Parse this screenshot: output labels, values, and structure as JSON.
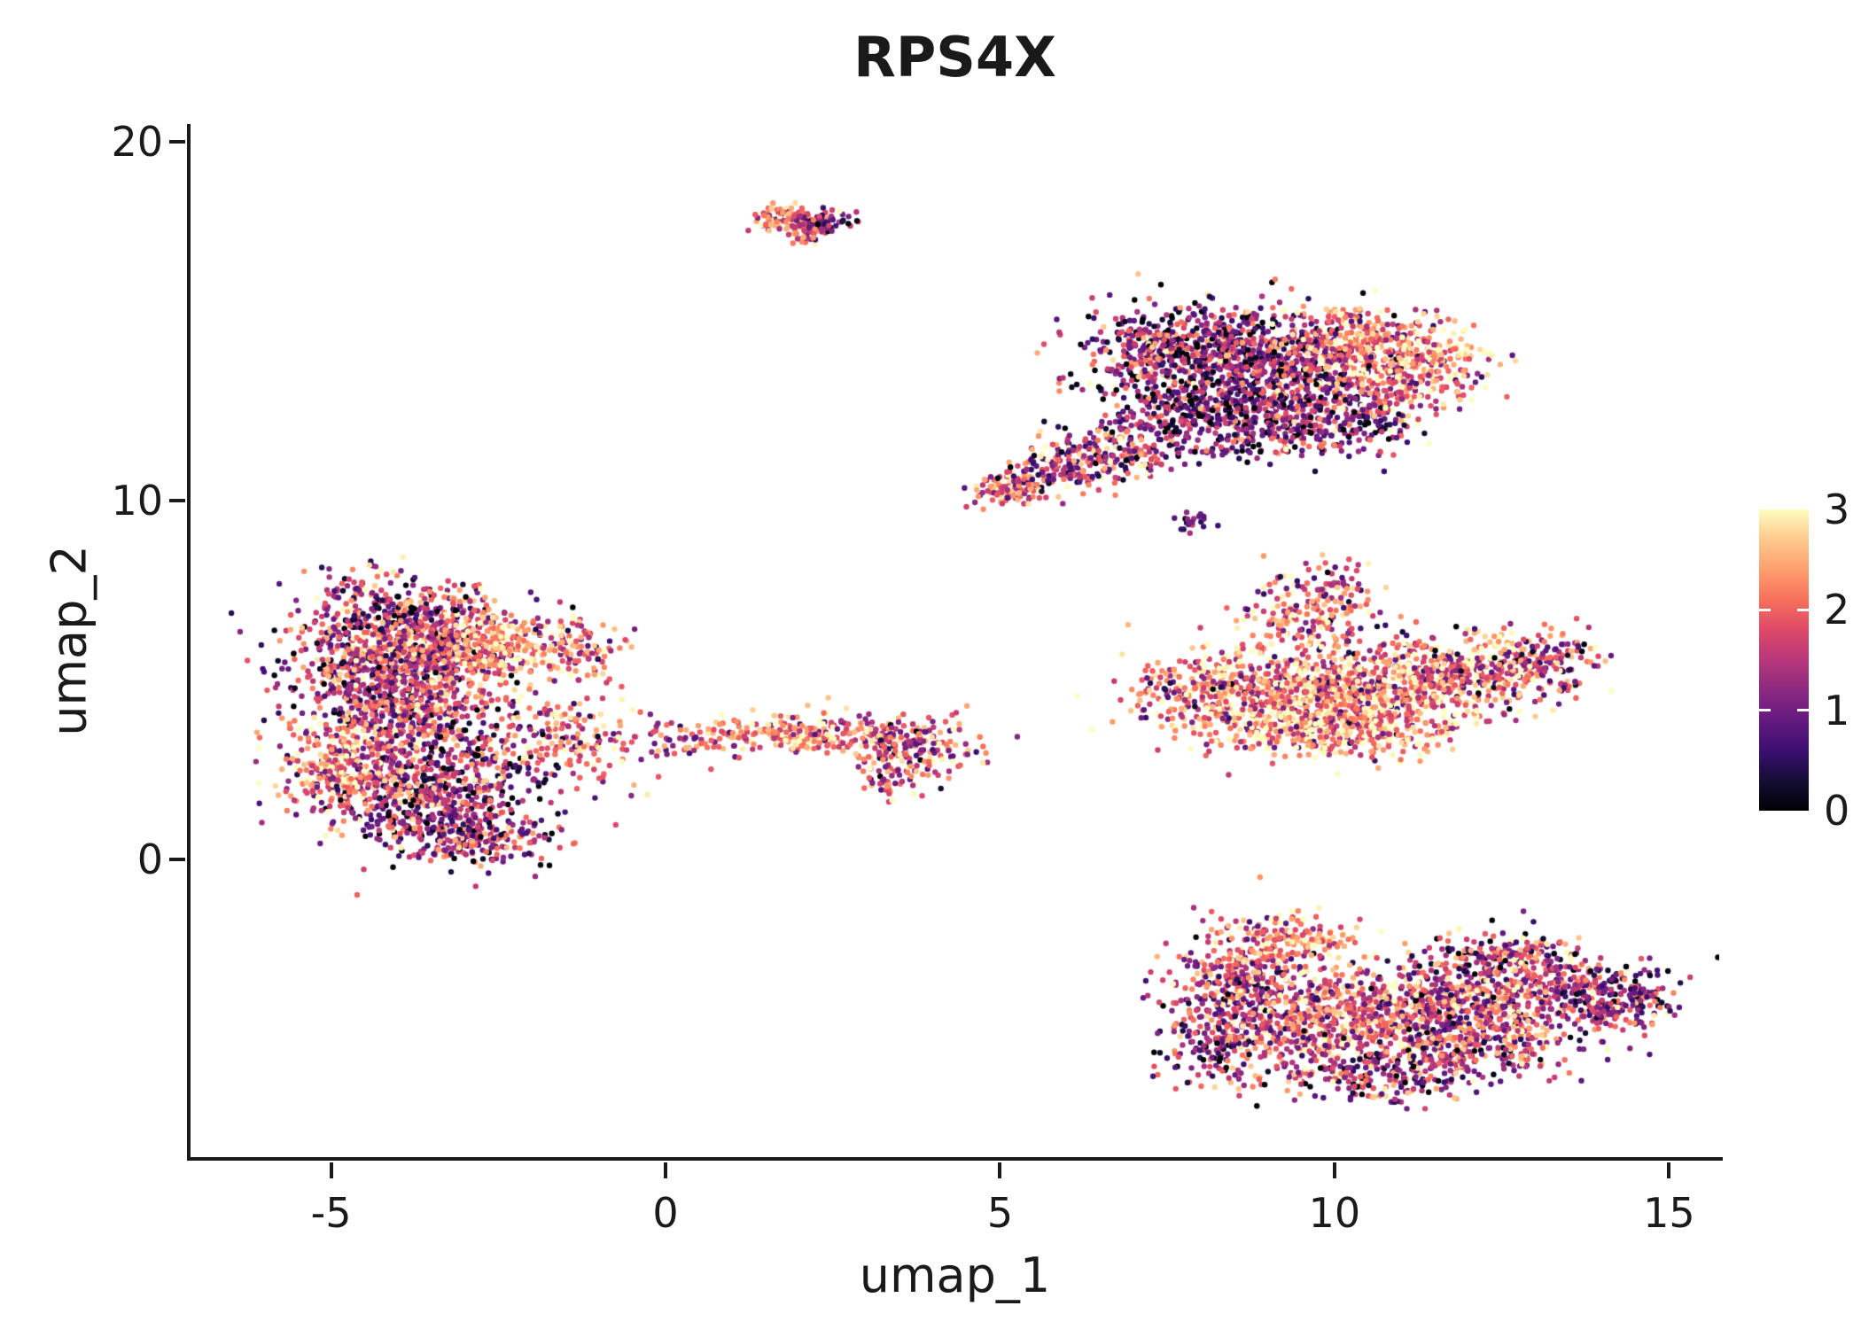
{
  "style": {
    "background": "#ffffff",
    "axis_color": "#1a1a1a",
    "text_color": "#1a1a1a"
  },
  "chart_data": {
    "type": "scatter",
    "title": "RPS4X",
    "xlabel": "umap_1",
    "ylabel": "umap_2",
    "xlim": [
      -7.1,
      15.75
    ],
    "ylim": [
      -8.3,
      20.5
    ],
    "xticks": [
      -5,
      0,
      5,
      10,
      15
    ],
    "yticks": [
      0,
      10,
      20
    ],
    "grid": false,
    "point_radius_px": 3.2,
    "seed": 1337,
    "legend": {
      "type": "colorbar",
      "position": "right",
      "domain": [
        0,
        3
      ],
      "label_values": [
        0,
        1,
        2,
        3
      ],
      "tick_marks": [
        1,
        2
      ],
      "colormap": "magma",
      "gradient_stops": [
        {
          "t": 0.0,
          "color": "#000004"
        },
        {
          "t": 0.1,
          "color": "#140e36"
        },
        {
          "t": 0.2,
          "color": "#3b0f70"
        },
        {
          "t": 0.3,
          "color": "#641a80"
        },
        {
          "t": 0.4,
          "color": "#8c2981"
        },
        {
          "t": 0.5,
          "color": "#b73779"
        },
        {
          "t": 0.6,
          "color": "#de4968"
        },
        {
          "t": 0.7,
          "color": "#f7705c"
        },
        {
          "t": 0.8,
          "color": "#fe9f6d"
        },
        {
          "t": 0.9,
          "color": "#fec98d"
        },
        {
          "t": 1.0,
          "color": "#fcfdbf"
        }
      ]
    },
    "clusters": [
      {
        "name": "top-island-a",
        "n": 90,
        "cx": 1.75,
        "cy": 17.9,
        "sx": 0.22,
        "sy": 0.16,
        "value_mean": 2.1,
        "value_sd": 0.7
      },
      {
        "name": "top-island-b",
        "n": 85,
        "cx": 2.3,
        "cy": 17.75,
        "sx": 0.25,
        "sy": 0.13,
        "value_mean": 1.2,
        "value_sd": 0.7
      },
      {
        "name": "top-island-c",
        "n": 25,
        "cx": 2.0,
        "cy": 17.45,
        "sx": 0.12,
        "sy": 0.2,
        "value_mean": 1.9,
        "value_sd": 0.7
      },
      {
        "name": "upper-right-a",
        "n": 500,
        "cx": 7.6,
        "cy": 14.2,
        "sx": 0.8,
        "sy": 0.65,
        "value_mean": 1.1,
        "value_sd": 0.85
      },
      {
        "name": "upper-right-b",
        "n": 550,
        "cx": 9.2,
        "cy": 13.8,
        "sx": 0.9,
        "sy": 0.75,
        "value_mean": 1.3,
        "value_sd": 0.85
      },
      {
        "name": "upper-right-c",
        "n": 420,
        "cx": 8.3,
        "cy": 12.4,
        "sx": 0.9,
        "sy": 0.6,
        "value_mean": 1.0,
        "value_sd": 0.8
      },
      {
        "name": "upper-right-d",
        "n": 260,
        "cx": 10.3,
        "cy": 14.4,
        "sx": 0.6,
        "sy": 0.5,
        "value_mean": 2.2,
        "value_sd": 0.75
      },
      {
        "name": "upper-right-e",
        "n": 200,
        "cx": 10.8,
        "cy": 13.2,
        "sx": 0.5,
        "sy": 0.6,
        "value_mean": 1.9,
        "value_sd": 0.8
      },
      {
        "name": "upper-right-f",
        "n": 220,
        "cx": 9.9,
        "cy": 12.2,
        "sx": 0.7,
        "sy": 0.5,
        "value_mean": 1.2,
        "value_sd": 0.8
      },
      {
        "name": "upper-right-g",
        "n": 130,
        "cx": 11.5,
        "cy": 13.9,
        "sx": 0.45,
        "sy": 0.55,
        "value_mean": 2.4,
        "value_sd": 0.6
      },
      {
        "name": "upper-right-tail-a",
        "n": 110,
        "cx": 5.15,
        "cy": 10.35,
        "sx": 0.3,
        "sy": 0.22,
        "value_mean": 1.9,
        "value_sd": 0.7
      },
      {
        "name": "upper-right-tail-b",
        "n": 130,
        "cx": 6.0,
        "cy": 10.9,
        "sx": 0.45,
        "sy": 0.3,
        "value_mean": 1.6,
        "value_sd": 0.8
      },
      {
        "name": "upper-right-tail-c",
        "n": 150,
        "cx": 6.9,
        "cy": 11.5,
        "sx": 0.5,
        "sy": 0.4,
        "value_mean": 1.4,
        "value_sd": 0.8
      },
      {
        "name": "mini-island",
        "n": 20,
        "cx": 7.95,
        "cy": 9.4,
        "sx": 0.13,
        "sy": 0.16,
        "value_mean": 0.9,
        "value_sd": 0.6
      },
      {
        "name": "mid-right-a",
        "n": 600,
        "cx": 9.3,
        "cy": 4.6,
        "sx": 1.0,
        "sy": 0.6,
        "value_mean": 2.3,
        "value_sd": 0.75
      },
      {
        "name": "mid-right-b",
        "n": 450,
        "cx": 11.0,
        "cy": 4.9,
        "sx": 0.9,
        "sy": 0.55,
        "value_mean": 2.1,
        "value_sd": 0.8
      },
      {
        "name": "mid-right-c",
        "n": 280,
        "cx": 12.3,
        "cy": 5.3,
        "sx": 0.7,
        "sy": 0.5,
        "value_mean": 2.0,
        "value_sd": 0.8
      },
      {
        "name": "mid-right-d",
        "n": 380,
        "cx": 10.0,
        "cy": 3.6,
        "sx": 1.0,
        "sy": 0.4,
        "value_mean": 2.4,
        "value_sd": 0.7
      },
      {
        "name": "mid-right-e",
        "n": 160,
        "cx": 9.6,
        "cy": 6.7,
        "sx": 0.55,
        "sy": 0.55,
        "value_mean": 2.0,
        "value_sd": 0.8
      },
      {
        "name": "mid-right-f",
        "n": 60,
        "cx": 9.9,
        "cy": 7.6,
        "sx": 0.4,
        "sy": 0.4,
        "value_mean": 1.8,
        "value_sd": 0.8
      },
      {
        "name": "mid-right-g",
        "n": 80,
        "cx": 13.2,
        "cy": 5.5,
        "sx": 0.35,
        "sy": 0.35,
        "value_mean": 1.5,
        "value_sd": 0.9
      },
      {
        "name": "mid-right-h",
        "n": 120,
        "cx": 8.0,
        "cy": 4.6,
        "sx": 0.5,
        "sy": 0.5,
        "value_mean": 1.9,
        "value_sd": 0.85
      },
      {
        "name": "left-a",
        "n": 700,
        "cx": -4.3,
        "cy": 5.6,
        "sx": 0.7,
        "sy": 0.95,
        "value_mean": 1.5,
        "value_sd": 0.85
      },
      {
        "name": "left-b",
        "n": 350,
        "cx": -3.2,
        "cy": 6.0,
        "sx": 0.6,
        "sy": 0.65,
        "value_mean": 1.6,
        "value_sd": 0.85
      },
      {
        "name": "left-c",
        "n": 200,
        "cx": -2.4,
        "cy": 5.9,
        "sx": 0.45,
        "sy": 0.45,
        "value_mean": 2.4,
        "value_sd": 0.6
      },
      {
        "name": "left-d",
        "n": 400,
        "cx": -3.8,
        "cy": 4.0,
        "sx": 0.8,
        "sy": 0.65,
        "value_mean": 1.7,
        "value_sd": 0.85
      },
      {
        "name": "left-e",
        "n": 700,
        "cx": -3.6,
        "cy": 1.9,
        "sx": 0.85,
        "sy": 0.8,
        "value_mean": 1.3,
        "value_sd": 0.85
      },
      {
        "name": "left-f",
        "n": 250,
        "cx": -4.8,
        "cy": 2.6,
        "sx": 0.45,
        "sy": 0.6,
        "value_mean": 2.2,
        "value_sd": 0.7
      },
      {
        "name": "left-g",
        "n": 200,
        "cx": -2.9,
        "cy": 0.6,
        "sx": 0.6,
        "sy": 0.4,
        "value_mean": 1.4,
        "value_sd": 0.8
      },
      {
        "name": "left-h",
        "n": 150,
        "cx": -1.6,
        "cy": 3.4,
        "sx": 0.5,
        "sy": 0.75,
        "value_mean": 1.8,
        "value_sd": 0.85
      },
      {
        "name": "left-i",
        "n": 120,
        "cx": -4.0,
        "cy": 7.2,
        "sx": 0.65,
        "sy": 0.4,
        "value_mean": 1.4,
        "value_sd": 0.85
      },
      {
        "name": "left-j",
        "n": 90,
        "cx": -1.2,
        "cy": 5.9,
        "sx": 0.3,
        "sy": 0.5,
        "value_mean": 2.0,
        "value_sd": 0.7
      },
      {
        "name": "bridge-a",
        "n": 80,
        "cx": 1.0,
        "cy": 3.4,
        "sx": 0.5,
        "sy": 0.25,
        "value_mean": 1.9,
        "value_sd": 0.7
      },
      {
        "name": "bridge-b",
        "n": 140,
        "cx": 2.1,
        "cy": 3.5,
        "sx": 0.45,
        "sy": 0.28,
        "value_mean": 2.2,
        "value_sd": 0.65
      },
      {
        "name": "bridge-c",
        "n": 90,
        "cx": 3.3,
        "cy": 3.4,
        "sx": 0.35,
        "sy": 0.3,
        "value_mean": 1.7,
        "value_sd": 0.8
      },
      {
        "name": "bridge-d",
        "n": 130,
        "cx": 3.9,
        "cy": 3.1,
        "sx": 0.45,
        "sy": 0.4,
        "value_mean": 1.8,
        "value_sd": 0.8
      },
      {
        "name": "bridge-e",
        "n": 30,
        "cx": 0.0,
        "cy": 3.3,
        "sx": 0.5,
        "sy": 0.3,
        "value_mean": 1.8,
        "value_sd": 0.7
      },
      {
        "name": "bridge-f",
        "n": 40,
        "cx": 3.4,
        "cy": 2.2,
        "sx": 0.25,
        "sy": 0.25,
        "value_mean": 1.6,
        "value_sd": 0.8
      },
      {
        "name": "bridge-g",
        "n": 25,
        "cx": -0.9,
        "cy": 3.1,
        "sx": 0.4,
        "sy": 0.5,
        "value_mean": 2.0,
        "value_sd": 0.7
      },
      {
        "name": "bottom-a",
        "n": 400,
        "cx": 8.6,
        "cy": -3.6,
        "sx": 0.55,
        "sy": 0.85,
        "value_mean": 1.6,
        "value_sd": 0.85
      },
      {
        "name": "bottom-b",
        "n": 500,
        "cx": 10.0,
        "cy": -4.6,
        "sx": 0.85,
        "sy": 0.75,
        "value_mean": 2.0,
        "value_sd": 0.8
      },
      {
        "name": "bottom-c",
        "n": 450,
        "cx": 11.5,
        "cy": -4.0,
        "sx": 0.9,
        "sy": 0.7,
        "value_mean": 1.7,
        "value_sd": 0.85
      },
      {
        "name": "bottom-d",
        "n": 350,
        "cx": 13.0,
        "cy": -3.6,
        "sx": 0.8,
        "sy": 0.55,
        "value_mean": 1.6,
        "value_sd": 0.85
      },
      {
        "name": "bottom-e",
        "n": 200,
        "cx": 14.2,
        "cy": -3.9,
        "sx": 0.45,
        "sy": 0.5,
        "value_mean": 1.3,
        "value_sd": 0.8
      },
      {
        "name": "bottom-f",
        "n": 150,
        "cx": 9.3,
        "cy": -2.2,
        "sx": 0.5,
        "sy": 0.3,
        "value_mean": 2.2,
        "value_sd": 0.7
      },
      {
        "name": "bottom-g",
        "n": 220,
        "cx": 10.6,
        "cy": -6.0,
        "sx": 0.8,
        "sy": 0.4,
        "value_mean": 1.2,
        "value_sd": 0.8
      },
      {
        "name": "bottom-h",
        "n": 250,
        "cx": 12.2,
        "cy": -5.2,
        "sx": 0.7,
        "sy": 0.5,
        "value_mean": 1.5,
        "value_sd": 0.85
      },
      {
        "name": "bottom-i",
        "n": 120,
        "cx": 8.2,
        "cy": -5.2,
        "sx": 0.4,
        "sy": 0.5,
        "value_mean": 1.1,
        "value_sd": 0.8
      },
      {
        "name": "bottom-j",
        "n": 120,
        "cx": 12.5,
        "cy": -2.6,
        "sx": 0.6,
        "sy": 0.3,
        "value_mean": 1.4,
        "value_sd": 0.85
      }
    ]
  }
}
